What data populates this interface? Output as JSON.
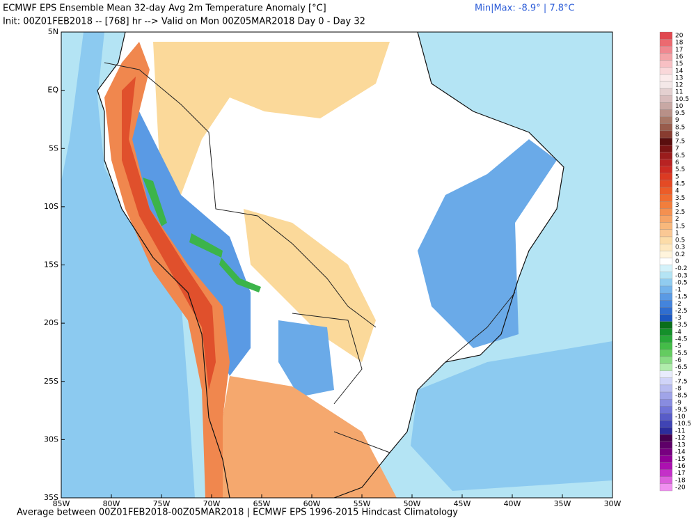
{
  "title": "ECMWF EPS Ensemble Mean 32-day Avg 2m Temperature Anomaly [°C]",
  "minmax": "Min|Max: -8.9° | 7.8°C",
  "subtitle": "Init: 00Z01FEB2018 -- [768] hr --> Valid on Mon 00Z05MAR2018   Day 0 - Day 32",
  "footer": "Average between 00Z01FEB2018-00Z05MAR2018 | ECMWF EPS 1996-2015 Hindcast Climatology",
  "lat_labels": [
    "5N",
    "EQ",
    "5S",
    "10S",
    "15S",
    "20S",
    "25S",
    "30S",
    "35S"
  ],
  "lon_labels": [
    "85W",
    "80W",
    "75W",
    "70W",
    "65W",
    "60W",
    "55W",
    "50W",
    "45W",
    "40W",
    "35W",
    "30W"
  ],
  "colorbar": {
    "levels": [
      20,
      18,
      17,
      16,
      15,
      14,
      13,
      12,
      11,
      10.5,
      10,
      9.5,
      9,
      8.5,
      8,
      7.5,
      7,
      6.5,
      6,
      5.5,
      5,
      4.5,
      4,
      3.5,
      3,
      2.5,
      2,
      1.5,
      1,
      0.5,
      0.3,
      0.2,
      0,
      -0.2,
      -0.3,
      -0.5,
      -1,
      -1.5,
      -2,
      -2.5,
      -3,
      -3.5,
      -4,
      -4.5,
      -5,
      -5.5,
      -6,
      -6.5,
      -7,
      -7.5,
      -8,
      -8.5,
      -9,
      -9.5,
      -10,
      -10.5,
      -11,
      -12,
      -13,
      -14,
      -15,
      -16,
      -17,
      -18,
      -20
    ]
  }
}
